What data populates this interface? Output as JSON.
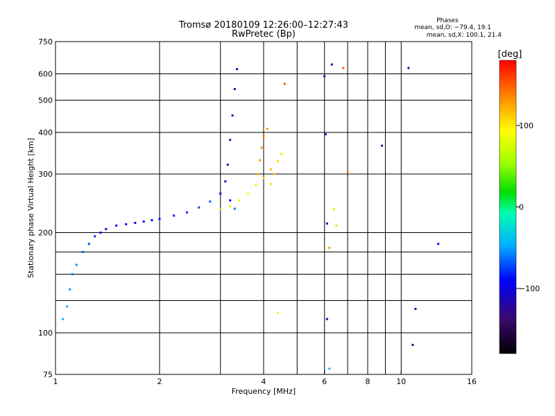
{
  "chart_data": {
    "type": "scatter",
    "title": "Tromsø 20180109 12:26:00–12:27:43",
    "subtitle": "RwPretec (Bp)",
    "xlabel": "Frequency [MHz]",
    "ylabel": "Stationary phase Virtual Height [km]",
    "x_scale": "log",
    "y_scale": "log",
    "xlim": [
      1,
      16
    ],
    "ylim": [
      75,
      750
    ],
    "grid": true,
    "x_ticks": [
      1,
      2,
      4,
      6,
      8,
      10,
      16
    ],
    "x_tick_labels": [
      "1",
      "2",
      "4",
      "6",
      "8",
      "10",
      "16"
    ],
    "y_ticks": [
      75,
      100,
      200,
      300,
      400,
      500,
      600,
      750
    ],
    "y_tick_labels": [
      "75",
      "100",
      "200",
      "300",
      "400",
      "500",
      "600",
      "750"
    ],
    "phases": {
      "title": "Phases",
      "line_o": "mean, sd,O: −79.4, 19.1",
      "line_x": "mean, sd,X: 100.1, 21.4"
    },
    "colorbar": {
      "label": "[deg]",
      "range": [
        -180,
        180
      ],
      "ticks": [
        100,
        0,
        -100
      ],
      "tick_labels": [
        "100",
        "0",
        "−100"
      ]
    },
    "series": [
      {
        "points": [
          [
            1.05,
            110,
            -40
          ],
          [
            1.08,
            120,
            -45
          ],
          [
            1.1,
            135,
            -50
          ],
          [
            1.12,
            150,
            -60
          ],
          [
            1.15,
            160,
            -55
          ],
          [
            1.2,
            175,
            -70
          ],
          [
            1.25,
            185,
            -75
          ],
          [
            1.3,
            195,
            -80
          ],
          [
            1.35,
            200,
            -90
          ],
          [
            1.4,
            205,
            -95
          ],
          [
            1.5,
            210,
            -100
          ],
          [
            1.6,
            212,
            -100
          ],
          [
            1.7,
            214,
            -95
          ],
          [
            1.8,
            216,
            -90
          ],
          [
            1.9,
            218,
            -90
          ],
          [
            2.0,
            220,
            -85
          ],
          [
            2.2,
            225,
            -85
          ],
          [
            2.4,
            230,
            -80
          ],
          [
            2.6,
            238,
            -75
          ],
          [
            2.8,
            248,
            -70
          ],
          [
            3.0,
            262,
            -95
          ],
          [
            3.1,
            285,
            -100
          ],
          [
            3.15,
            320,
            -110
          ],
          [
            3.2,
            380,
            -115
          ],
          [
            3.25,
            450,
            -120
          ],
          [
            3.3,
            540,
            -115
          ],
          [
            3.35,
            620,
            -110
          ],
          [
            3.2,
            250,
            -95
          ],
          [
            3.3,
            236,
            -60
          ]
        ]
      },
      {
        "points": [
          [
            3.0,
            235,
            60
          ],
          [
            3.2,
            240,
            70
          ],
          [
            3.4,
            250,
            80
          ],
          [
            3.6,
            262,
            90
          ],
          [
            3.8,
            278,
            100
          ],
          [
            4.0,
            292,
            110
          ],
          [
            4.2,
            310,
            120
          ],
          [
            4.4,
            328,
            110
          ],
          [
            4.5,
            345,
            100
          ],
          [
            3.85,
            300,
            120
          ],
          [
            3.9,
            330,
            130
          ],
          [
            3.95,
            360,
            135
          ],
          [
            4.0,
            390,
            140
          ],
          [
            4.1,
            410,
            130
          ],
          [
            4.2,
            280,
            105
          ],
          [
            4.3,
            300,
            115
          ],
          [
            4.6,
            560,
            150
          ],
          [
            4.4,
            115,
            100
          ]
        ]
      },
      {
        "points": [
          [
            6.0,
            590,
            -120
          ],
          [
            6.05,
            395,
            -110
          ],
          [
            6.3,
            640,
            -100
          ],
          [
            6.1,
            213,
            -105
          ],
          [
            6.2,
            180,
            130
          ],
          [
            6.4,
            235,
            80
          ],
          [
            6.5,
            210,
            60
          ],
          [
            6.8,
            625,
            150
          ],
          [
            7.0,
            305,
            140
          ],
          [
            8.8,
            365,
            -130
          ],
          [
            10.5,
            625,
            -120
          ],
          [
            11.0,
            118,
            -110
          ],
          [
            12.8,
            185,
            -100
          ],
          [
            10.8,
            92,
            -140
          ],
          [
            6.1,
            110,
            -100
          ],
          [
            6.2,
            78,
            -40
          ]
        ]
      }
    ]
  }
}
